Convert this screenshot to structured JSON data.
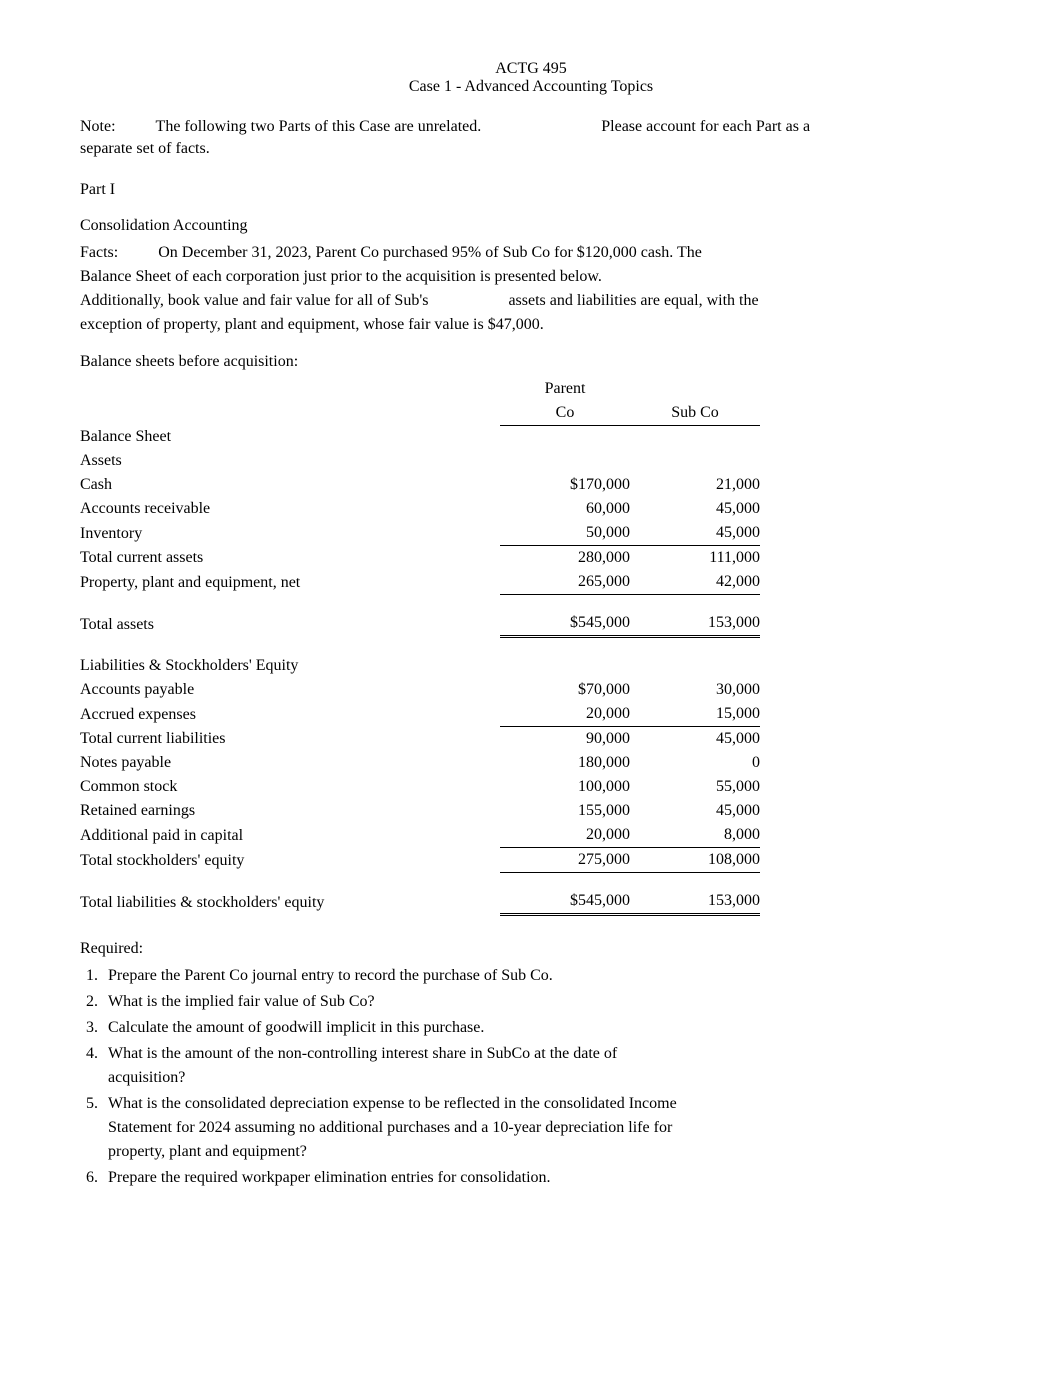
{
  "header": {
    "course": "ACTG 495",
    "title": "Case 1 - Advanced Accounting Topics"
  },
  "note": {
    "label": "Note:",
    "text1": "The following two Parts of this Case are unrelated.",
    "text2": "Please account for each Part as a",
    "text3": "separate set of facts."
  },
  "part_label": "Part I",
  "subheading": "Consolidation Accounting",
  "facts": {
    "label": "Facts:",
    "line1": "On December 31, 2023, Parent Co purchased 95% of Sub Co for $120,000 cash. The",
    "line2": "Balance Sheet of each corporation just prior to the acquisition is presented below.",
    "line3a": "Additionally, book value and fair value for all of Sub's",
    "line3b": "assets and liabilities are equal, with the",
    "line4": "exception of property, plant and equipment, whose fair value is $47,000."
  },
  "bs_intro": "Balance sheets before acquisition:",
  "table": {
    "col_headers": {
      "parent_top": "Parent",
      "parent": "Co",
      "sub": "Sub Co"
    },
    "rows": [
      {
        "label": "Balance Sheet",
        "indent": 0,
        "parent": "",
        "sub": ""
      },
      {
        "label": "Assets",
        "indent": 0,
        "parent": "",
        "sub": ""
      },
      {
        "label": "Cash",
        "indent": 0,
        "parent": "$170,000",
        "sub": "21,000"
      },
      {
        "label": "Accounts receivable",
        "indent": 0,
        "parent": "60,000",
        "sub": "45,000"
      },
      {
        "label": "Inventory",
        "indent": 0,
        "parent": "50,000",
        "sub": "45,000",
        "border": "bb"
      },
      {
        "label": "Total current assets",
        "indent": 1,
        "parent": "280,000",
        "sub": "111,000"
      },
      {
        "label": "Property, plant and equipment, net",
        "indent": 0,
        "parent": "265,000",
        "sub": "42,000",
        "border": "bb"
      },
      {
        "spacer": true
      },
      {
        "label": "Total assets",
        "indent": 2,
        "parent": "$545,000",
        "sub": "153,000",
        "border": "bbd"
      },
      {
        "spacer": true
      },
      {
        "label": "Liabilities & Stockholders' Equity",
        "indent": 0,
        "parent": "",
        "sub": ""
      },
      {
        "label": "Accounts payable",
        "indent": 0,
        "parent": "$70,000",
        "sub": "30,000"
      },
      {
        "label": "Accrued expenses",
        "indent": 0,
        "parent": "20,000",
        "sub": "15,000",
        "border": "bb"
      },
      {
        "label": "Total current liabilities",
        "indent": 1,
        "parent": "90,000",
        "sub": "45,000"
      },
      {
        "label": "Notes payable",
        "indent": 0,
        "parent": "180,000",
        "sub": "0"
      },
      {
        "label": "Common stock",
        "indent": 0,
        "parent": "100,000",
        "sub": "55,000"
      },
      {
        "label": "Retained earnings",
        "indent": 0,
        "parent": "155,000",
        "sub": "45,000"
      },
      {
        "label": "Additional paid in capital",
        "indent": 0,
        "parent": "20,000",
        "sub": "8,000",
        "border": "bb"
      },
      {
        "label": "Total stockholders' equity",
        "indent": 1,
        "parent": "275,000",
        "sub": "108,000",
        "border": "bb"
      },
      {
        "spacer": true
      },
      {
        "label": "Total liabilities & stockholders' equity",
        "indent": 2,
        "parent": "$545,000",
        "sub": "153,000",
        "border": "bbd"
      }
    ]
  },
  "required": {
    "label": "Required:",
    "items": [
      "Prepare the Parent Co journal entry to record the purchase of Sub Co.",
      "What is the implied fair value of Sub Co?",
      "Calculate the amount of goodwill implicit in this purchase.",
      "What is the amount of the non-controlling interest share in SubCo at the date of",
      "What is the consolidated depreciation expense to be reflected in the consolidated Income",
      "Prepare the required workpaper elimination entries for consolidation."
    ],
    "sub4": "acquisition?",
    "sub5a": "Statement for 2024 assuming no additional purchases and a 10-year depreciation life for",
    "sub5b": "property, plant and equipment?"
  }
}
